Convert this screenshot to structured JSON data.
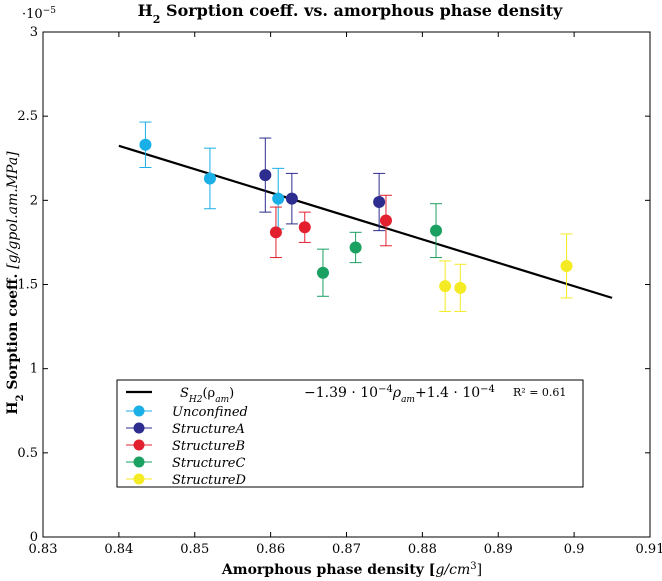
{
  "chart_data": {
    "type": "scatter",
    "title": "H2 Sorption coeff. vs. amorphous phase density",
    "title_main": "H",
    "title_sub": "2",
    "title_rest": " Sorption coeff. vs. amorphous phase density",
    "xlabel": "Amorphous phase density [g/cm3]",
    "xlabel_main": "Amorphous phase density [",
    "xlabel_unit": "g/cm",
    "xlabel_exp": "3",
    "xlabel_close": "]",
    "ylabel": "H2 Sorption coeff. [g/gpol.am.MPa]",
    "ylabel_main": "H",
    "ylabel_sub": "2",
    "ylabel_rest": " Sorption coeff. ",
    "ylabel_unit": "[g/gpol.am.MPa]",
    "y_scale_base": "·10",
    "y_scale_exp": "−5",
    "xlim": [
      0.83,
      0.91
    ],
    "ylim": [
      0,
      3
    ],
    "xticks": [
      "0.83",
      "0.84",
      "0.85",
      "0.86",
      "0.87",
      "0.88",
      "0.89",
      "0.9",
      "0.91"
    ],
    "yticks": [
      "0",
      "0.5",
      "1",
      "1.5",
      "2",
      "2.5",
      "3"
    ],
    "xtick_values": [
      0.83,
      0.84,
      0.85,
      0.86,
      0.87,
      0.88,
      0.89,
      0.9,
      0.91
    ],
    "ytick_values": [
      0,
      0.5,
      1,
      1.5,
      2,
      2.5,
      3
    ],
    "grid": false,
    "series": [
      {
        "name": "Unconfined",
        "color": "#1aafe6",
        "points": [
          {
            "x": 0.8435,
            "y": 2.33,
            "err": 0.135
          },
          {
            "x": 0.852,
            "y": 2.13,
            "err": 0.18
          },
          {
            "x": 0.861,
            "y": 2.01,
            "err": 0.18
          }
        ]
      },
      {
        "name": "StructureA",
        "color": "#2d2d8f",
        "points": [
          {
            "x": 0.8593,
            "y": 2.15,
            "err": 0.22
          },
          {
            "x": 0.8628,
            "y": 2.01,
            "err": 0.15
          },
          {
            "x": 0.8743,
            "y": 1.99,
            "err": 0.17
          }
        ]
      },
      {
        "name": "StructureB",
        "color": "#e3202e",
        "points": [
          {
            "x": 0.8607,
            "y": 1.81,
            "err": 0.15
          },
          {
            "x": 0.8645,
            "y": 1.84,
            "err": 0.09
          },
          {
            "x": 0.8752,
            "y": 1.88,
            "err": 0.15
          }
        ]
      },
      {
        "name": "StructureC",
        "color": "#1aa060",
        "points": [
          {
            "x": 0.8669,
            "y": 1.57,
            "err": 0.14
          },
          {
            "x": 0.8712,
            "y": 1.72,
            "err": 0.09
          },
          {
            "x": 0.8818,
            "y": 1.82,
            "err": 0.16
          }
        ]
      },
      {
        "name": "StructureD",
        "color": "#f5eb25",
        "points": [
          {
            "x": 0.883,
            "y": 1.49,
            "err": 0.15
          },
          {
            "x": 0.885,
            "y": 1.48,
            "err": 0.14
          },
          {
            "x": 0.899,
            "y": 1.61,
            "err": 0.19
          }
        ]
      }
    ],
    "fit": {
      "label": "S_H2(ρ_am)",
      "label_main": "S",
      "label_sub": "H2",
      "label_arg": "(ρ",
      "label_arg_sub": "am",
      "label_arg_close": ")",
      "equation": "−1.39 · 10−4 ρam+1.4 · 10−4",
      "eq_part1": "−1.39 · 10",
      "eq_exp1": "−4",
      "eq_part2": "ρ",
      "eq_sub2": "am",
      "eq_part3": "+1.4 · 10",
      "eq_exp3": "−4",
      "r2": "R² = 0.61",
      "slope": -13.9,
      "intercept": 14.0,
      "x_range": [
        0.84,
        0.905
      ],
      "color": "#000000"
    },
    "legend_position": "bottom-center"
  }
}
